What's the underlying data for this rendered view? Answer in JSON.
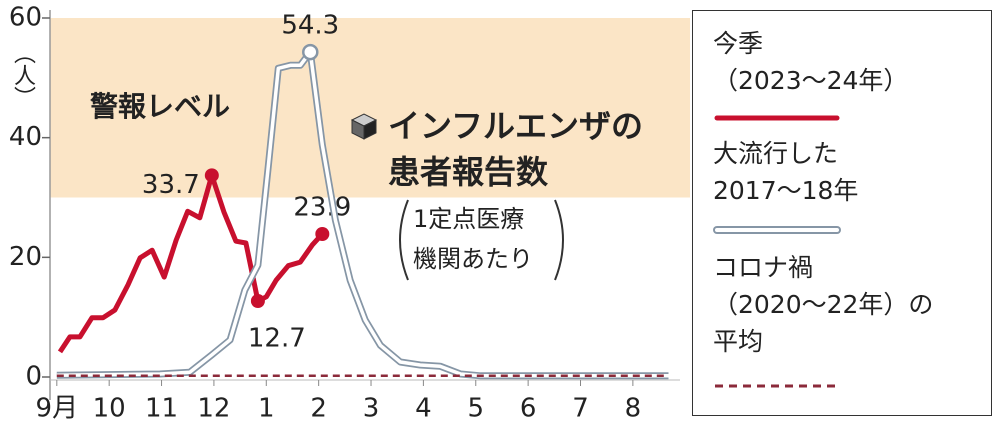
{
  "chart_data": {
    "type": "line",
    "annotations": {
      "alert": "警報レベル",
      "title": "インフルエンザの\n患者報告数",
      "note": "1定点医療\n機関あたり"
    },
    "y_unit": "（人）",
    "alert_level": 30,
    "alert_color": "#fbe5c6",
    "xlim": [
      -0.13,
      11.9
    ],
    "xticks": [
      {
        "value": 0,
        "label": "9月"
      },
      {
        "value": 1,
        "label": "10"
      },
      {
        "value": 2,
        "label": "11"
      },
      {
        "value": 3,
        "label": "12"
      },
      {
        "value": 4,
        "label": "1"
      },
      {
        "value": 5,
        "label": "2"
      },
      {
        "value": 6,
        "label": "3"
      },
      {
        "value": 7,
        "label": "4"
      },
      {
        "value": 8,
        "label": "5"
      },
      {
        "value": 9,
        "label": "6"
      },
      {
        "value": 10,
        "label": "7"
      },
      {
        "value": 11,
        "label": "8"
      }
    ],
    "ylim": [
      0,
      60
    ],
    "yticks": [
      0,
      20,
      40,
      60
    ],
    "series": [
      {
        "name": "今季\n（2023～24年）",
        "color": "#c8102e",
        "style": "solid",
        "x": [
          0.06,
          0.25,
          0.44,
          0.67,
          0.88,
          1.11,
          1.36,
          1.59,
          1.82,
          2.05,
          2.28,
          2.5,
          2.73,
          2.96,
          3.19,
          3.42,
          3.61,
          3.84,
          4.0,
          4.19,
          4.42,
          4.65,
          4.88,
          5.07
        ],
        "values": [
          4.2,
          6.7,
          6.7,
          9.9,
          9.9,
          11.2,
          15.4,
          19.9,
          21.2,
          16.7,
          22.9,
          27.7,
          26.6,
          33.7,
          27.6,
          22.7,
          22.4,
          12.7,
          13.4,
          16.2,
          18.6,
          19.2,
          22.1,
          23.9
        ],
        "value_labels": [
          null,
          null,
          null,
          null,
          null,
          null,
          null,
          null,
          null,
          null,
          null,
          null,
          null,
          "33.7",
          null,
          null,
          null,
          "12.7",
          null,
          null,
          null,
          null,
          null,
          "23.9"
        ]
      },
      {
        "name": "大流行した\n2017～18年",
        "color": "#8696a6",
        "style": "outline",
        "x": [
          0,
          1.97,
          2.54,
          2.96,
          3.31,
          3.59,
          3.84,
          4.03,
          4.23,
          4.46,
          4.65,
          4.84,
          5.07,
          5.32,
          5.6,
          5.89,
          6.18,
          6.56,
          6.94,
          7.32,
          7.71,
          8.09,
          11.68
        ],
        "values": [
          0.3,
          0.5,
          0.8,
          3.7,
          6.2,
          14.5,
          18.7,
          34.6,
          51.6,
          52.1,
          52.1,
          54.3,
          38.8,
          26.2,
          16.2,
          9.5,
          5.3,
          2.5,
          2.0,
          1.8,
          0.5,
          0.2,
          0.2
        ],
        "value_labels": [
          null,
          null,
          null,
          null,
          null,
          null,
          null,
          null,
          null,
          null,
          null,
          "54.3",
          null,
          null,
          null,
          null,
          null,
          null,
          null,
          null,
          null,
          null,
          null
        ]
      },
      {
        "name": "コロナ禍\n（2020～22年）の\n平均",
        "color": "#8b2a3a",
        "style": "dashed",
        "x": [
          0,
          11.68
        ],
        "values": [
          0.2,
          0.2
        ]
      }
    ]
  }
}
